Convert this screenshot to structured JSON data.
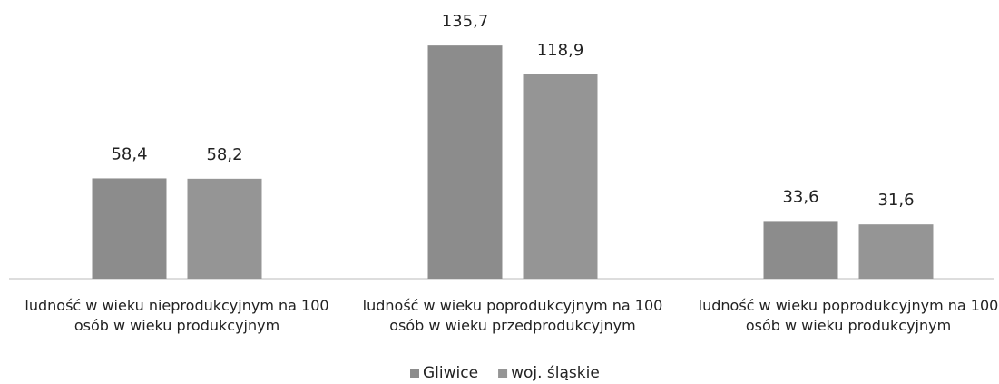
{
  "chart_data": {
    "type": "bar",
    "categories": [
      "ludność w wieku nieprodukcyjnym na 100 osób w wieku produkcyjnym",
      "ludność w wieku poprodukcyjnym na 100 osób w wieku przedprodukcyjnym",
      "ludność w wieku poprodukcyjnym na 100 osób w wieku produkcyjnym"
    ],
    "series": [
      {
        "name": "Gliwice",
        "color": "#8c8c8c",
        "values": [
          58.4,
          135.7,
          33.6
        ],
        "value_labels": [
          "58,4",
          "135,7",
          "33,6"
        ]
      },
      {
        "name": "woj. śląskie",
        "color": "#959595",
        "values": [
          58.2,
          118.9,
          31.6
        ],
        "value_labels": [
          "58,2",
          "118,9",
          "31,6"
        ]
      }
    ],
    "ylim": [
      0,
      140
    ],
    "legend": "bottom"
  }
}
